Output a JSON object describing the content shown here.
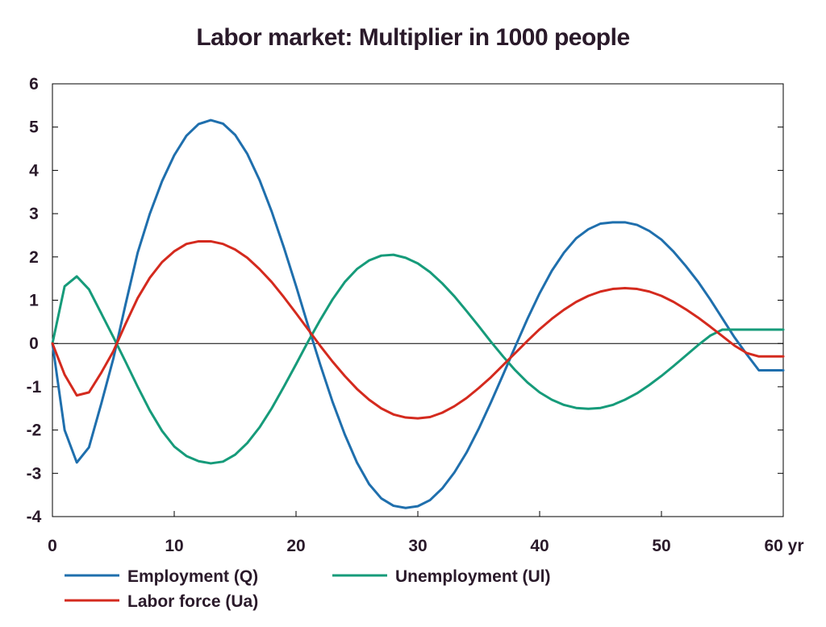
{
  "chart_data": {
    "type": "line",
    "title": "Labor market: Multiplier in 1000 people",
    "xlabel": "",
    "ylabel": "",
    "xlim": [
      0,
      60
    ],
    "ylim": [
      -4,
      6
    ],
    "x_ticks": [
      0,
      10,
      20,
      30,
      40,
      50,
      60
    ],
    "x_tick_labels": [
      "0",
      "10",
      "20",
      "30",
      "40",
      "50",
      "60 yr"
    ],
    "y_ticks": [
      -4,
      -3,
      -2,
      -1,
      0,
      1,
      2,
      3,
      4,
      5,
      6
    ],
    "y_tick_labels": [
      "-4",
      "-3",
      "-2",
      "-1",
      "0",
      "1",
      "2",
      "3",
      "4",
      "5",
      "6"
    ],
    "grid": false,
    "zero_line": true,
    "legend_position": "bottom",
    "series": [
      {
        "name": "Employment (Q)",
        "color": "#1f6fad",
        "x": [
          0,
          1,
          2,
          3,
          4,
          5,
          6,
          7,
          8,
          9,
          10,
          11,
          12,
          13,
          14,
          15,
          16,
          17,
          18,
          19,
          20,
          21,
          22,
          23,
          24,
          25,
          26,
          27,
          28,
          29,
          30,
          31,
          32,
          33,
          34,
          35,
          36,
          37,
          38,
          39,
          40,
          41,
          42,
          43,
          44,
          45,
          46,
          47,
          48,
          49,
          50,
          51,
          52,
          53,
          54,
          55,
          56,
          57,
          58,
          59,
          60
        ],
        "values": [
          0,
          -2.0,
          -2.75,
          -2.4,
          -1.4,
          -0.35,
          0.9,
          2.1,
          3.0,
          3.75,
          4.35,
          4.8,
          5.07,
          5.16,
          5.08,
          4.82,
          4.38,
          3.78,
          3.05,
          2.22,
          1.33,
          0.4,
          -0.5,
          -1.35,
          -2.1,
          -2.75,
          -3.25,
          -3.58,
          -3.75,
          -3.8,
          -3.76,
          -3.62,
          -3.35,
          -2.98,
          -2.52,
          -1.97,
          -1.36,
          -0.72,
          -0.07,
          0.57,
          1.16,
          1.68,
          2.1,
          2.43,
          2.64,
          2.77,
          2.8,
          2.8,
          2.74,
          2.6,
          2.4,
          2.12,
          1.79,
          1.43,
          1.02,
          0.58,
          0.14,
          -0.25,
          -0.62,
          -0.62,
          -0.62
        ]
      },
      {
        "name": "Unemployment (Ul)",
        "color": "#169b7a",
        "x": [
          0,
          1,
          2,
          3,
          4,
          5,
          6,
          7,
          8,
          9,
          10,
          11,
          12,
          13,
          14,
          15,
          16,
          17,
          18,
          19,
          20,
          21,
          22,
          23,
          24,
          25,
          26,
          27,
          28,
          29,
          30,
          31,
          32,
          33,
          34,
          35,
          36,
          37,
          38,
          39,
          40,
          41,
          42,
          43,
          44,
          45,
          46,
          47,
          48,
          49,
          50,
          51,
          52,
          53,
          54,
          55,
          56,
          57,
          58,
          59,
          60
        ],
        "values": [
          0,
          1.32,
          1.55,
          1.25,
          0.7,
          0.15,
          -0.42,
          -1.0,
          -1.55,
          -2.02,
          -2.38,
          -2.6,
          -2.72,
          -2.77,
          -2.73,
          -2.57,
          -2.3,
          -1.94,
          -1.5,
          -1.0,
          -0.48,
          0.05,
          0.55,
          1.02,
          1.42,
          1.72,
          1.92,
          2.03,
          2.05,
          1.98,
          1.85,
          1.65,
          1.39,
          1.09,
          0.75,
          0.4,
          0.04,
          -0.3,
          -0.62,
          -0.9,
          -1.13,
          -1.3,
          -1.42,
          -1.49,
          -1.51,
          -1.49,
          -1.42,
          -1.3,
          -1.15,
          -0.96,
          -0.75,
          -0.52,
          -0.28,
          -0.04,
          0.18,
          0.32,
          0.32,
          0.32,
          0.32,
          0.32,
          0.32
        ]
      },
      {
        "name": "Labor force (Ua)",
        "color": "#d42a1e",
        "x": [
          0,
          1,
          2,
          3,
          4,
          5,
          6,
          7,
          8,
          9,
          10,
          11,
          12,
          13,
          14,
          15,
          16,
          17,
          18,
          19,
          20,
          21,
          22,
          23,
          24,
          25,
          26,
          27,
          28,
          29,
          30,
          31,
          32,
          33,
          34,
          35,
          36,
          37,
          38,
          39,
          40,
          41,
          42,
          43,
          44,
          45,
          46,
          47,
          48,
          49,
          50,
          51,
          52,
          53,
          54,
          55,
          56,
          57,
          58,
          59,
          60
        ],
        "values": [
          0,
          -0.72,
          -1.2,
          -1.13,
          -0.68,
          -0.18,
          0.45,
          1.05,
          1.52,
          1.88,
          2.13,
          2.3,
          2.36,
          2.36,
          2.3,
          2.17,
          1.98,
          1.72,
          1.42,
          1.07,
          0.7,
          0.32,
          -0.06,
          -0.42,
          -0.75,
          -1.05,
          -1.3,
          -1.5,
          -1.64,
          -1.71,
          -1.73,
          -1.7,
          -1.6,
          -1.45,
          -1.26,
          -1.03,
          -0.78,
          -0.5,
          -0.22,
          0.06,
          0.33,
          0.57,
          0.78,
          0.96,
          1.1,
          1.2,
          1.26,
          1.28,
          1.26,
          1.2,
          1.1,
          0.96,
          0.79,
          0.6,
          0.39,
          0.17,
          -0.05,
          -0.22,
          -0.3,
          -0.3,
          -0.3
        ]
      }
    ]
  }
}
